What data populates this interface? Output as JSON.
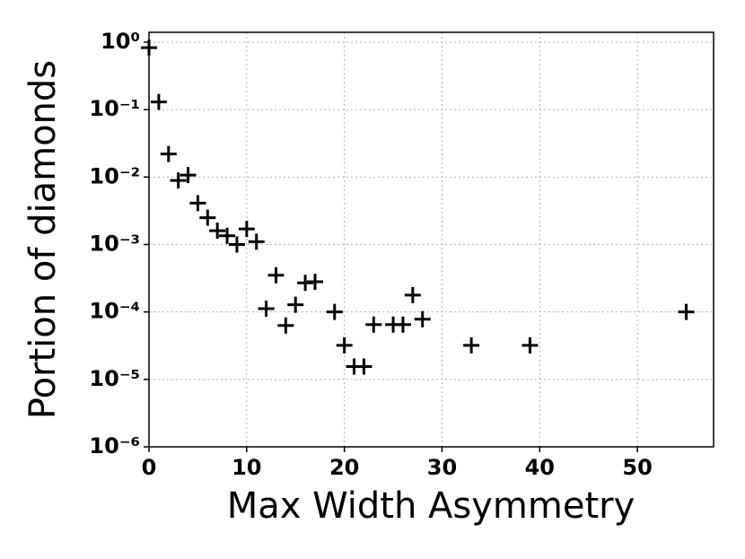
{
  "chart_data": {
    "type": "scatter",
    "x_label": "Max Width Asymmetry",
    "y_label": "Portion of diamonds",
    "color": "#000000",
    "marker": "+",
    "grid": true,
    "y_scale": "log",
    "x": [
      0,
      1,
      2,
      3,
      4,
      5,
      6,
      7,
      8,
      9,
      10,
      11,
      12,
      13,
      14,
      15,
      16,
      17,
      19,
      20,
      21,
      22,
      23,
      25,
      26,
      27,
      28,
      33,
      39,
      55
    ],
    "values": [
      0.83,
      0.13,
      0.022,
      0.0089,
      0.0107,
      0.0041,
      0.0025,
      0.0016,
      0.00135,
      0.001,
      0.0017,
      0.0011,
      0.000112,
      0.00035,
      6.3e-05,
      0.000128,
      0.00027,
      0.00028,
      0.0001,
      3.2e-05,
      1.55e-05,
      1.55e-05,
      6.5e-05,
      6.5e-05,
      6.5e-05,
      0.000178,
      7.8e-05,
      3.2e-05,
      3.2e-05,
      0.0001
    ],
    "xlim": [
      0,
      57.8
    ],
    "xticks": [
      0,
      10,
      20,
      30,
      40,
      50
    ],
    "ylim": [
      1e-06,
      1.4
    ],
    "yticks": [
      {
        "value": 1e-06,
        "label": "10⁻⁶"
      },
      {
        "value": 1e-05,
        "label": "10⁻⁵"
      },
      {
        "value": 0.0001,
        "label": "10⁻⁴"
      },
      {
        "value": 0.001,
        "label": "10⁻³"
      },
      {
        "value": 0.01,
        "label": "10⁻²"
      },
      {
        "value": 0.1,
        "label": "10⁻¹"
      },
      {
        "value": 1,
        "label": "10⁰"
      }
    ]
  }
}
